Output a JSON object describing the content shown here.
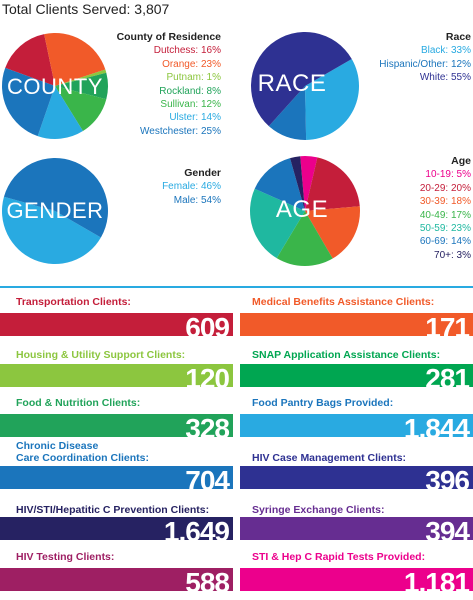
{
  "header": {
    "total": "Total Clients Served: 3,807"
  },
  "colors": {
    "red": "#c41e3a",
    "orange": "#f15a29",
    "lime": "#8cc63f",
    "green": "#21a35a",
    "lightblue": "#29aae1",
    "blue": "#1b75bc",
    "navy": "#2e3192",
    "darknavy": "#262262",
    "purple": "#662d91",
    "magenta": "#9e1f63",
    "pink": "#ec008c",
    "teal": "#1fb8a0",
    "darkgreen": "#00a651"
  },
  "chart_data": [
    {
      "type": "pie",
      "center_label": "COUNTY",
      "title": "County of Residence",
      "labels": [
        "Dutchess: 16%",
        "Orange: 23%",
        "Putnam: 1%",
        "Rockland: 8%",
        "Sullivan: 12%",
        "Ulster: 14%",
        "Westchester: 25%"
      ],
      "categories": [
        "Dutchess",
        "Orange",
        "Putnam",
        "Rockland",
        "Sullivan",
        "Ulster",
        "Westchester"
      ],
      "values": [
        16,
        23,
        1,
        8,
        12,
        14,
        25
      ],
      "colors": [
        "#c41e3a",
        "#f15a29",
        "#8cc63f",
        "#21a35a",
        "#3ab54a",
        "#29aae1",
        "#1b75bc"
      ]
    },
    {
      "type": "pie",
      "center_label": "RACE",
      "title": "Race",
      "labels": [
        "Black: 33%",
        "Hispanic/Other: 12%",
        "White: 55%"
      ],
      "categories": [
        "Black",
        "Hispanic/Other",
        "White"
      ],
      "values": [
        33,
        12,
        55
      ],
      "colors": [
        "#29aae1",
        "#1b75bc",
        "#2e3192"
      ]
    },
    {
      "type": "pie",
      "center_label": "GENDER",
      "title": "Gender",
      "labels": [
        "Female: 46%",
        "Male: 54%"
      ],
      "categories": [
        "Female",
        "Male"
      ],
      "values": [
        46,
        54
      ],
      "colors": [
        "#29aae1",
        "#1b75bc"
      ]
    },
    {
      "type": "pie",
      "center_label": "AGE",
      "title": "Age",
      "labels": [
        "10-19: 5%",
        "20-29: 20%",
        "30-39: 18%",
        "40-49: 17%",
        "50-59: 23%",
        "60-69: 14%",
        "70+: 3%"
      ],
      "categories": [
        "10-19",
        "20-29",
        "30-39",
        "40-49",
        "50-59",
        "60-69",
        "70+"
      ],
      "values": [
        5,
        20,
        18,
        17,
        23,
        14,
        3
      ],
      "colors": [
        "#ec008c",
        "#c41e3a",
        "#f15a29",
        "#3ab54a",
        "#1fb8a0",
        "#1b75bc",
        "#262262"
      ]
    }
  ],
  "stats": [
    {
      "label": "Transportation Clients:",
      "value": "609",
      "color": "#c41e3a"
    },
    {
      "label": "Medical Benefits Assistance Clients:",
      "value": "171",
      "color": "#f15a29"
    },
    {
      "label": "Housing & Utility Support Clients:",
      "value": "120",
      "color": "#8cc63f"
    },
    {
      "label": "SNAP Application Assistance Clients:",
      "value": "281",
      "color": "#00a651"
    },
    {
      "label": "Food & Nutrition Clients:",
      "value": "328",
      "color": "#21a35a"
    },
    {
      "label": "Food Pantry Bags Provided:",
      "value": "1,844",
      "color": "#29aae1"
    },
    {
      "label": "Chronic Disease\nCare Coordination Clients:",
      "value": "704",
      "color": "#1b75bc"
    },
    {
      "label": "HIV Case Management Clients:",
      "value": "396",
      "color": "#2e3192"
    },
    {
      "label": "HIV/STI/Hepatitic C Prevention Clients:",
      "value": "1,649",
      "color": "#262262"
    },
    {
      "label": "Syringe Exchange Clients:",
      "value": "394",
      "color": "#662d91"
    },
    {
      "label": "HIV Testing Clients:",
      "value": "588",
      "color": "#9e1f63"
    },
    {
      "label": "STI & Hep C Rapid Tests Provided:",
      "value": "1,181",
      "color": "#ec008c"
    }
  ]
}
